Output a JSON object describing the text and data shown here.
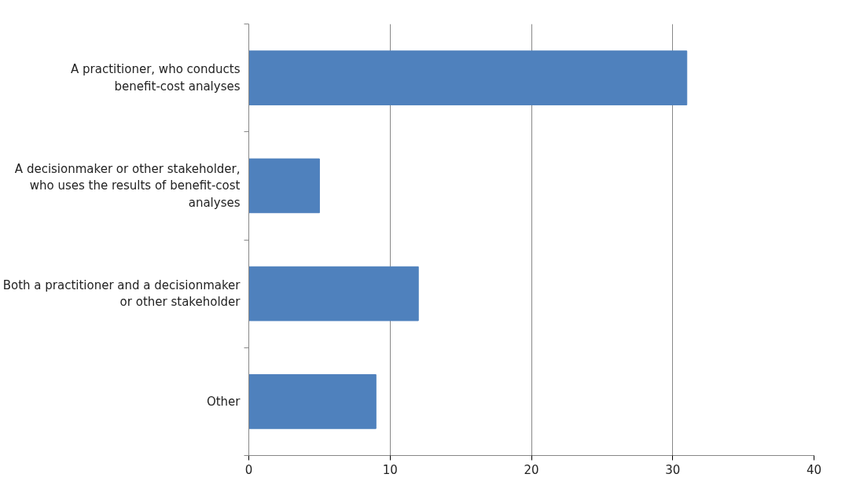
{
  "chart_data": {
    "type": "bar",
    "orientation": "horizontal",
    "categories": [
      "A practitioner, who conducts benefit-cost analyses",
      "A decisionmaker or other stakeholder, who uses the results of benefit-cost analyses",
      "Both a practitioner and a decisionmaker or other stakeholder",
      "Other"
    ],
    "values": [
      31,
      5,
      12,
      9
    ],
    "color": "#4f81bd",
    "xlim": [
      0,
      40
    ],
    "xticks": [
      0,
      10,
      20,
      30,
      40
    ],
    "grid": "x"
  }
}
